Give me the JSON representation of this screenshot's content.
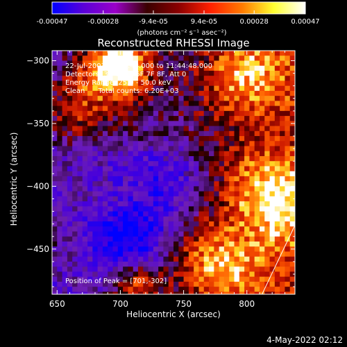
{
  "colorbar": {
    "ticks": [
      "-0.00047",
      "-0.00028",
      "-9.4e-05",
      "9.4e-05",
      "0.00028",
      "0.00047"
    ],
    "tick_values": [
      -0.00047,
      -0.00028,
      -9.4e-05,
      9.4e-05,
      0.00028,
      0.00047
    ],
    "range": [
      -0.00047,
      0.00047
    ],
    "unit_label": "(photons cm⁻² s⁻¹ asec⁻²)",
    "colors": [
      "#0000ff",
      "#5a00d8",
      "#9a00c8",
      "#3a0000",
      "#8b0000",
      "#ff2000",
      "#ff7a00",
      "#ffff30",
      "#ffffff"
    ]
  },
  "annotations": {
    "line1": "22-Jul-2003 11:38:48.000 to 11:44:48.000",
    "line2": "Detectors: 3F 4F 5F 6F 7F 8F, Att 0",
    "line3": "Energy Range: 25.0 - 50.0 keV",
    "line4": "Clean      Total counts: 6.20E+03",
    "peak": "Position of Peak = [701,-302]"
  },
  "footer": {
    "date": "4-May-2022 02:12"
  },
  "chart_data": {
    "type": "heatmap",
    "title": "Reconstructed RHESSI Image",
    "xlabel": "Heliocentric X (arcsec)",
    "ylabel": "Heliocentric Y (arcsec)",
    "xlim": [
      646,
      838
    ],
    "ylim": [
      -486,
      -292
    ],
    "xticks": [
      650,
      700,
      750,
      800
    ],
    "yticks": [
      -300,
      -350,
      -400,
      -450
    ],
    "peak_position": [
      701,
      -302
    ],
    "colorscale_range": [
      -0.00047,
      0.00047
    ],
    "bright_sources": [
      {
        "x": 701,
        "y": -302,
        "level": 1.0
      },
      {
        "x": 713,
        "y": -478,
        "level": 0.85
      },
      {
        "x": 690,
        "y": -308,
        "level": 0.75
      },
      {
        "x": 800,
        "y": -312,
        "level": 0.7
      },
      {
        "x": 660,
        "y": -340,
        "level": 0.6
      },
      {
        "x": 830,
        "y": -420,
        "level": 0.55
      },
      {
        "x": 700,
        "y": -370,
        "level": 0.35
      },
      {
        "x": 810,
        "y": -400,
        "level": 0.5
      },
      {
        "x": 690,
        "y": -410,
        "level": 0.4
      },
      {
        "x": 765,
        "y": -455,
        "level": 0.45
      },
      {
        "x": 660,
        "y": -440,
        "level": 0.45
      },
      {
        "x": 790,
        "y": -470,
        "level": 0.5
      }
    ],
    "dim_regions": [
      {
        "x": 700,
        "y": -380,
        "level": -0.6
      },
      {
        "x": 710,
        "y": -445,
        "level": -0.75
      },
      {
        "x": 740,
        "y": -400,
        "level": -0.5
      },
      {
        "x": 680,
        "y": -430,
        "level": -0.55
      }
    ]
  }
}
